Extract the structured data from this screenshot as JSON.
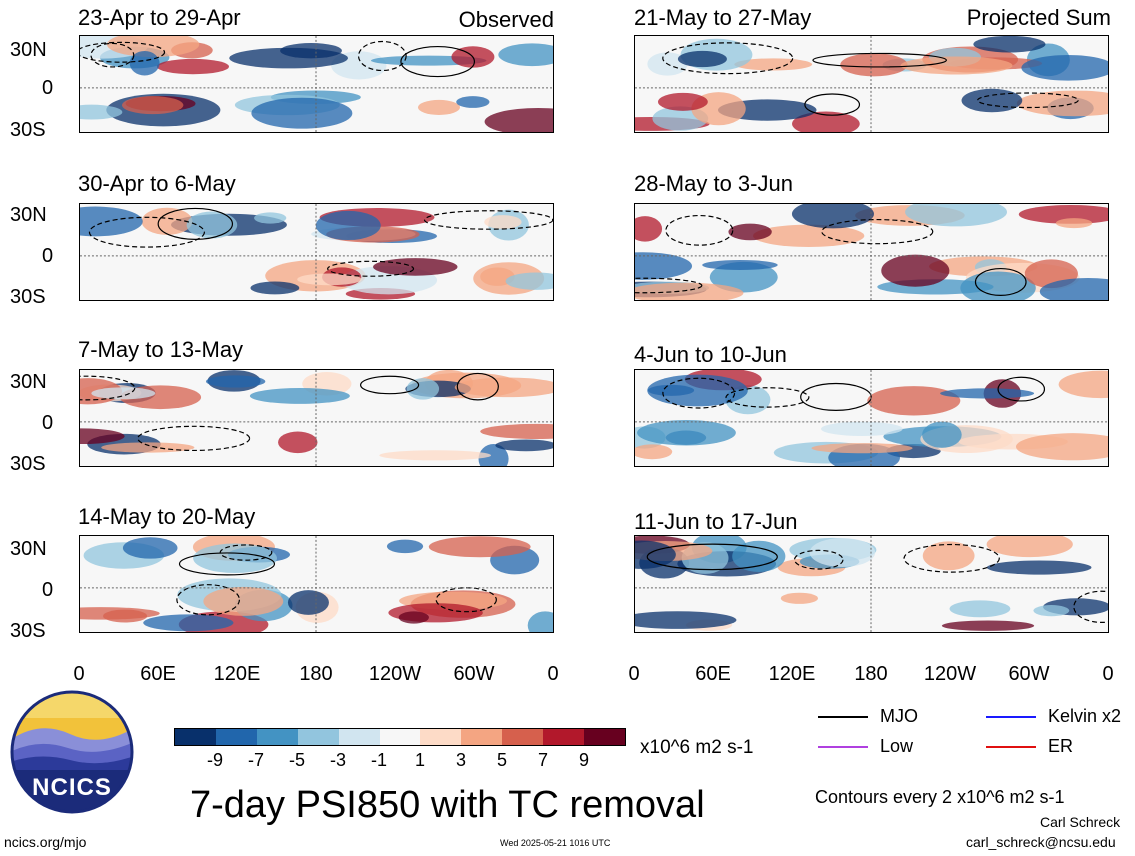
{
  "panels_left": [
    {
      "title": "23-Apr to 29-Apr",
      "tag": "Observed"
    },
    {
      "title": "30-Apr to 6-May",
      "tag": ""
    },
    {
      "title": "7-May to 13-May",
      "tag": ""
    },
    {
      "title": "14-May to 20-May",
      "tag": ""
    }
  ],
  "panels_right": [
    {
      "title": "21-May to 27-May",
      "tag": "Projected Sum"
    },
    {
      "title": "28-May to 3-Jun",
      "tag": ""
    },
    {
      "title": "4-Jun to 10-Jun",
      "tag": ""
    },
    {
      "title": "11-Jun to 17-Jun",
      "tag": ""
    }
  ],
  "y_ticks": [
    "30N",
    "0",
    "30S"
  ],
  "x_ticks": [
    "0",
    "60E",
    "120E",
    "180",
    "120W",
    "60W",
    "0"
  ],
  "colorbar": {
    "ticks": [
      "-9",
      "-7",
      "-5",
      "-3",
      "-1",
      "1",
      "3",
      "5",
      "7",
      "9"
    ],
    "units": "x10^6 m2 s-1",
    "colors": [
      "#08306b",
      "#2166ac",
      "#4393c3",
      "#92c5de",
      "#d1e5f0",
      "#f7f7f7",
      "#fddbc7",
      "#f4a582",
      "#d6604d",
      "#b2182b",
      "#67001f"
    ]
  },
  "title": "7-day PSI850 with TC removal",
  "legend": {
    "mjo": "MJO",
    "kelvin": "Kelvin x2",
    "low": "Low",
    "er": "ER",
    "colors": {
      "mjo": "#000000",
      "kelvin": "#1a1aff",
      "low": "#b040e0",
      "er": "#e01010"
    }
  },
  "contour_note": "Contours every 2 x10^6 m2 s-1",
  "logo": {
    "text": "NCICS"
  },
  "footer": {
    "url": "ncics.org/mjo",
    "timestamp": "Wed 2025-05-21 1016 UTC",
    "author": "Carl Schreck",
    "email": "carl_schreck@ncsu.edu"
  }
}
